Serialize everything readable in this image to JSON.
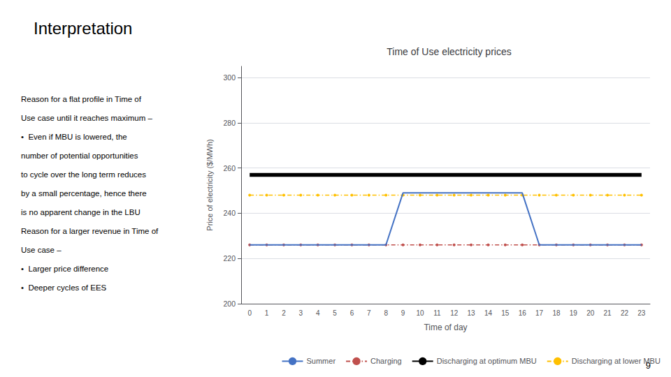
{
  "slide_title": "Interpretation",
  "annotations": [
    "Reason for a flat profile in Time of",
    "Use case until it reaches maximum –",
    "•  Even if MBU is lowered, the",
    "number of potential opportunities",
    "to cycle over the long term reduces",
    "by a small percentage, hence there",
    "is no apparent change in the LBU",
    "Reason for a larger revenue in Time of",
    "Use case –",
    "•  Larger price difference",
    "•  Deeper cycles of EES"
  ],
  "page_number": "9",
  "chart_data": {
    "type": "line",
    "title": "Time of Use electricity prices",
    "xlabel": "Time of day",
    "ylabel": "Price of electricity ($/MWh)",
    "categories": [
      0,
      1,
      2,
      3,
      4,
      5,
      6,
      7,
      8,
      9,
      10,
      11,
      12,
      13,
      14,
      15,
      16,
      17,
      18,
      19,
      20,
      21,
      22,
      23
    ],
    "series": [
      {
        "name": "Summer",
        "color": "#4472C4",
        "line_style": "solid",
        "values": [
          226,
          226,
          226,
          226,
          226,
          226,
          226,
          226,
          226,
          249,
          249,
          249,
          249,
          249,
          249,
          249,
          249,
          226,
          226,
          226,
          226,
          226,
          226,
          226
        ]
      },
      {
        "name": "Charging",
        "color": "#C0504D",
        "line_style": "dashdot",
        "marker": "circle",
        "values": [
          226,
          226,
          226,
          226,
          226,
          226,
          226,
          226,
          226,
          226,
          226,
          226,
          226,
          226,
          226,
          226,
          226,
          226,
          226,
          226,
          226,
          226,
          226,
          226
        ]
      },
      {
        "name": "Discharging at optimum MBU",
        "color": "#000000",
        "line_style": "solid",
        "values": [
          257,
          257,
          257,
          257,
          257,
          257,
          257,
          257,
          257,
          257,
          257,
          257,
          257,
          257,
          257,
          257,
          257,
          257,
          257,
          257,
          257,
          257,
          257,
          257
        ]
      },
      {
        "name": "Discharging at lower MBU",
        "color": "#FFC000",
        "line_style": "dashdot",
        "marker": "circle",
        "values": [
          248,
          248,
          248,
          248,
          248,
          248,
          248,
          248,
          248,
          248,
          248,
          248,
          248,
          248,
          248,
          248,
          248,
          248,
          248,
          248,
          248,
          248,
          248,
          248
        ]
      }
    ],
    "ylim": [
      200,
      305
    ],
    "yticks": [
      200,
      220,
      240,
      260,
      280,
      300
    ],
    "grid": true,
    "legend": "bottom"
  }
}
